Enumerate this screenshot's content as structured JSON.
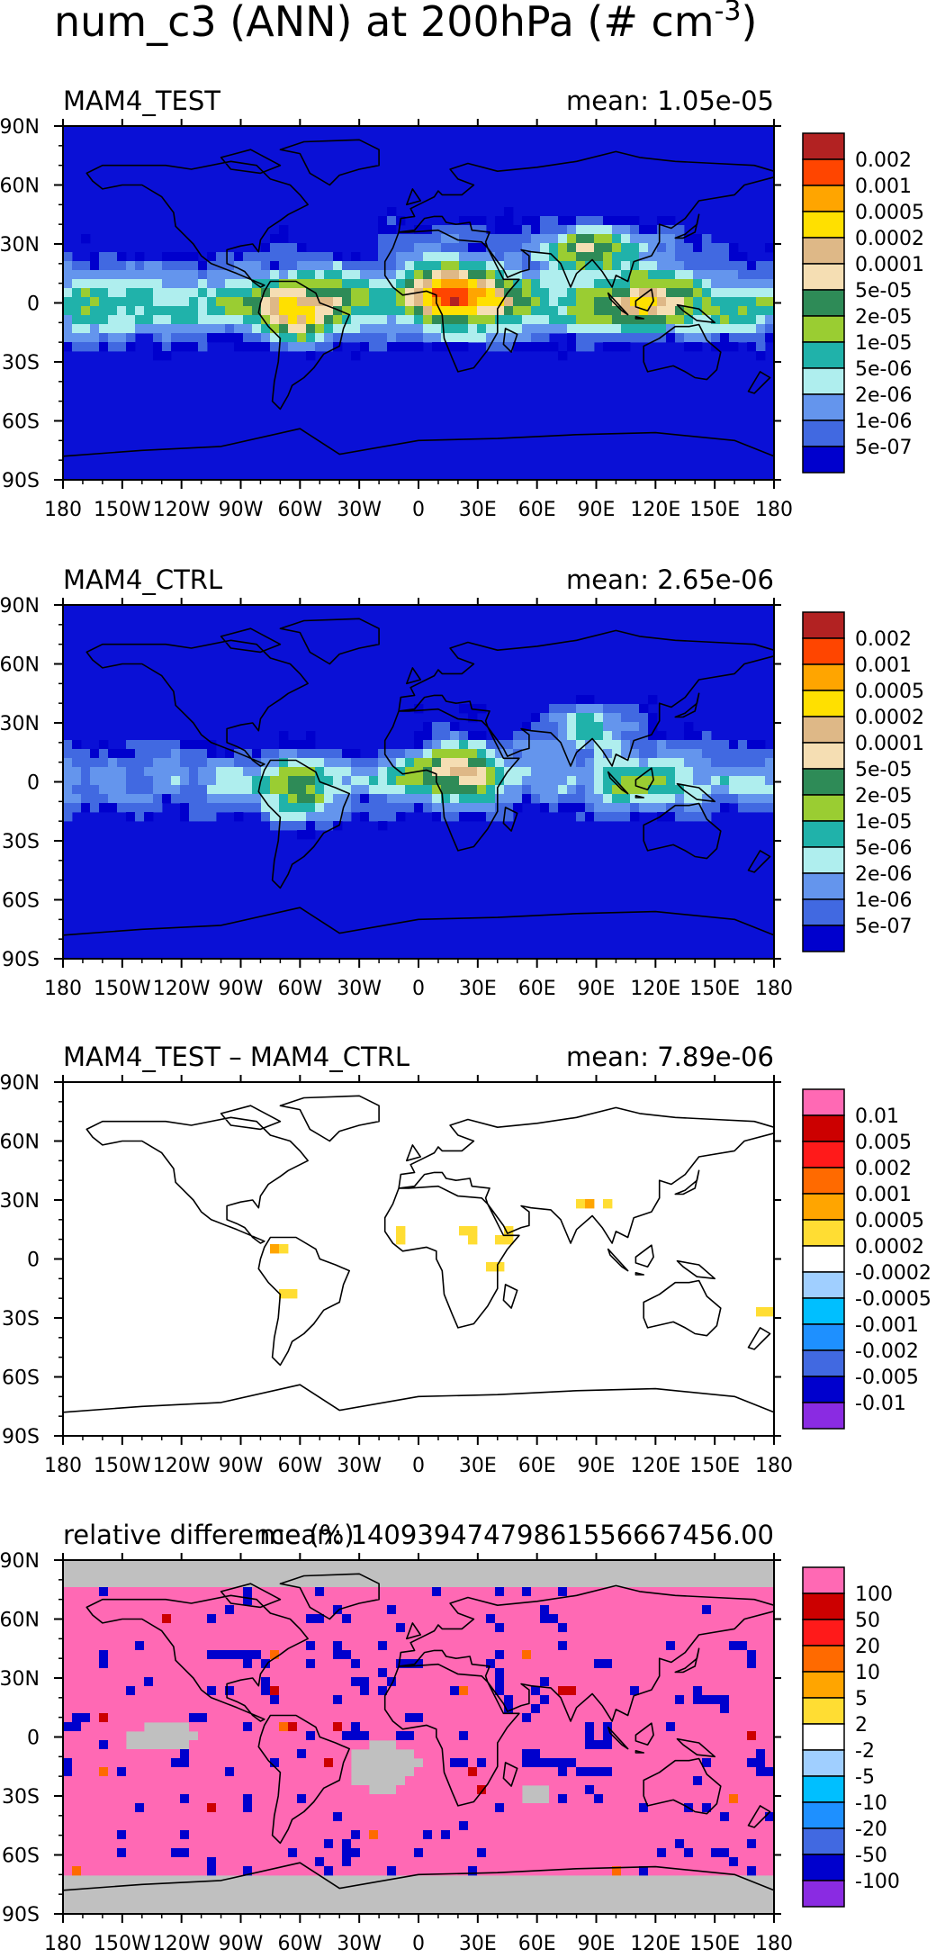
{
  "title": "num_c3 (ANN) at 200hPa (# cm",
  "title_exp": "-3",
  "title_close": ")",
  "colors": {
    "ocean": "#0a10d6",
    "gray": "#c0c0c0",
    "white": "#ffffff"
  },
  "chart_data": [
    {
      "type": "heatmap",
      "title": "MAM4_TEST",
      "mean_label": "mean: 1.05e-05",
      "x_ticks": [
        "180",
        "150W",
        "120W",
        "90W",
        "60W",
        "30W",
        "0",
        "30E",
        "60E",
        "90E",
        "120E",
        "150E",
        "180"
      ],
      "y_ticks": [
        "90N",
        "60N",
        "30N",
        "0",
        "30S",
        "60S",
        "90S"
      ],
      "xlim": [
        -180,
        180
      ],
      "ylim": [
        -90,
        90
      ],
      "legend_placement": "right",
      "legend_labels": [
        "0.002",
        "0.001",
        "0.0005",
        "0.0002",
        "0.0001",
        "5e-05",
        "2e-05",
        "1e-05",
        "5e-06",
        "2e-06",
        "1e-06",
        "5e-07"
      ],
      "legend_colors": [
        "#b22222",
        "#ff4500",
        "#ffa500",
        "#ffe000",
        "#deb887",
        "#f5deb3",
        "#2e8b57",
        "#9acd32",
        "#20b2aa",
        "#afeeee",
        "#6495ed",
        "#4169e1",
        "#0000cd"
      ],
      "background": "ocean",
      "field": "test"
    },
    {
      "type": "heatmap",
      "title": "MAM4_CTRL",
      "mean_label": "mean: 2.65e-06",
      "x_ticks": [
        "180",
        "150W",
        "120W",
        "90W",
        "60W",
        "30W",
        "0",
        "30E",
        "60E",
        "90E",
        "120E",
        "150E",
        "180"
      ],
      "y_ticks": [
        "90N",
        "60N",
        "30N",
        "0",
        "30S",
        "60S",
        "90S"
      ],
      "xlim": [
        -180,
        180
      ],
      "ylim": [
        -90,
        90
      ],
      "legend_placement": "right",
      "legend_labels": [
        "0.002",
        "0.001",
        "0.0005",
        "0.0002",
        "0.0001",
        "5e-05",
        "2e-05",
        "1e-05",
        "5e-06",
        "2e-06",
        "1e-06",
        "5e-07"
      ],
      "legend_colors": [
        "#b22222",
        "#ff4500",
        "#ffa500",
        "#ffe000",
        "#deb887",
        "#f5deb3",
        "#2e8b57",
        "#9acd32",
        "#20b2aa",
        "#afeeee",
        "#6495ed",
        "#4169e1",
        "#0000cd"
      ],
      "background": "ocean",
      "field": "ctrl"
    },
    {
      "type": "heatmap",
      "title": "MAM4_TEST – MAM4_CTRL",
      "mean_label": "mean: 7.89e-06",
      "x_ticks": [
        "180",
        "150W",
        "120W",
        "90W",
        "60W",
        "30W",
        "0",
        "30E",
        "60E",
        "90E",
        "120E",
        "150E",
        "180"
      ],
      "y_ticks": [
        "90N",
        "60N",
        "30N",
        "0",
        "30S",
        "60S",
        "90S"
      ],
      "xlim": [
        -180,
        180
      ],
      "ylim": [
        -90,
        90
      ],
      "legend_placement": "right",
      "legend_labels": [
        "0.01",
        "0.005",
        "0.002",
        "0.001",
        "0.0005",
        "0.0002",
        "-0.0002",
        "-0.0005",
        "-0.001",
        "-0.002",
        "-0.005",
        "-0.01"
      ],
      "legend_colors": [
        "#ff69b4",
        "#cc0000",
        "#ff1a1a",
        "#ff6a00",
        "#ffa500",
        "#ffdd33",
        "#ffffff",
        "#a0cfff",
        "#00bfff",
        "#1e90ff",
        "#4169e1",
        "#0000cd",
        "#8a2be2"
      ],
      "background": "white",
      "field": "diff"
    },
    {
      "type": "heatmap",
      "title": "relative difference (%)",
      "mean_label": "mean: 14093947479861556667456.00",
      "x_ticks": [
        "180",
        "150W",
        "120W",
        "90W",
        "60W",
        "30W",
        "0",
        "30E",
        "60E",
        "90E",
        "120E",
        "150E",
        "180"
      ],
      "y_ticks": [
        "90N",
        "60N",
        "30N",
        "0",
        "30S",
        "60S",
        "90S"
      ],
      "xlim": [
        -180,
        180
      ],
      "ylim": [
        -90,
        90
      ],
      "legend_placement": "right",
      "legend_labels": [
        "100",
        "50",
        "20",
        "10",
        "5",
        "2",
        "-2",
        "-5",
        "-10",
        "-20",
        "-50",
        "-100"
      ],
      "legend_colors": [
        "#ff69b4",
        "#cc0000",
        "#ff1a1a",
        "#ff6a00",
        "#ffa500",
        "#ffdd33",
        "#ffffff",
        "#a0cfff",
        "#00bfff",
        "#1e90ff",
        "#4169e1",
        "#0000cd",
        "#8a2be2"
      ],
      "background": "gray",
      "field": "rel"
    }
  ]
}
